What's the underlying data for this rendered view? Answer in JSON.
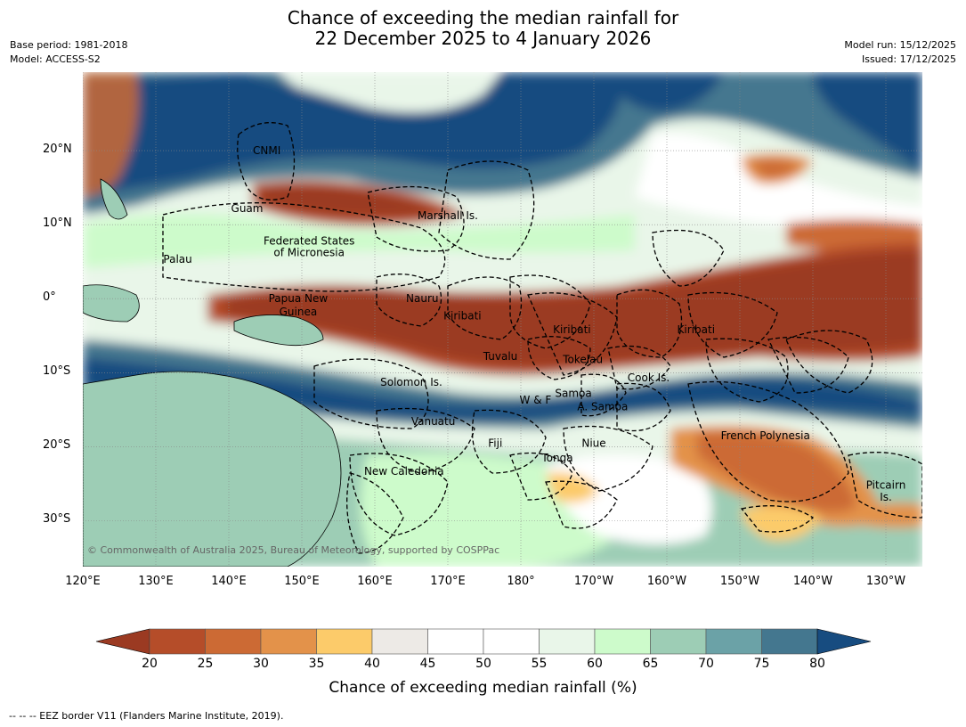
{
  "title": {
    "line1": "Chance of exceeding the median rainfall for",
    "line2": "22 December 2025 to 4 January 2026"
  },
  "meta": {
    "base_period": "Base period: 1981-2018",
    "model": "Model: ACCESS-S2",
    "model_run": "Model run: 15/12/2025",
    "issued": "Issued: 17/12/2025"
  },
  "axes": {
    "lat_labels": [
      "20°N",
      "10°N",
      "0°",
      "10°S",
      "20°S",
      "30°S"
    ],
    "lon_labels": [
      "120°E",
      "130°E",
      "140°E",
      "150°E",
      "160°E",
      "170°E",
      "180°",
      "170°W",
      "160°W",
      "150°W",
      "140°W",
      "130°W"
    ]
  },
  "places": [
    {
      "name": "CNMI",
      "lat": 20.0,
      "lon": 145.2
    },
    {
      "name": "Guam",
      "lat": 12.2,
      "lon": 142.5
    },
    {
      "name": "Marshall Is.",
      "lat": 11.2,
      "lon": 170.0
    },
    {
      "name": "Federated States",
      "lat": 7.8,
      "lon": 151.0
    },
    {
      "name": "of Micronesia",
      "lat": 6.2,
      "lon": 151.0
    },
    {
      "name": "Palau",
      "lat": 5.3,
      "lon": 133.0
    },
    {
      "name": "Papua New",
      "lat": 0.0,
      "lon": 149.5
    },
    {
      "name": "Guinea",
      "lat": -1.8,
      "lon": 149.5
    },
    {
      "name": "Nauru",
      "lat": 0.0,
      "lon": 166.5
    },
    {
      "name": "Kiribati",
      "lat": -2.3,
      "lon": 172.0
    },
    {
      "name": "Kiribati",
      "lat": -4.2,
      "lon": -173.0
    },
    {
      "name": "Kiribati",
      "lat": -4.2,
      "lon": -156.0
    },
    {
      "name": "Tuvalu",
      "lat": -7.8,
      "lon": 177.2
    },
    {
      "name": "Tokelau",
      "lat": -8.2,
      "lon": -171.5
    },
    {
      "name": "Solomon Is.",
      "lat": -11.3,
      "lon": 165.0
    },
    {
      "name": "Cook Is.",
      "lat": -10.7,
      "lon": -162.5
    },
    {
      "name": "Samoa",
      "lat": -12.8,
      "lon": -172.8
    },
    {
      "name": "W & F",
      "lat": -13.7,
      "lon": -178.0
    },
    {
      "name": "A. Samoa",
      "lat": -14.6,
      "lon": -168.8
    },
    {
      "name": "Vanuatu",
      "lat": -16.6,
      "lon": 168.0
    },
    {
      "name": "French Polynesia",
      "lat": -18.5,
      "lon": -146.5
    },
    {
      "name": "Fiji",
      "lat": -19.5,
      "lon": 176.5
    },
    {
      "name": "Niue",
      "lat": -19.5,
      "lon": -170.0
    },
    {
      "name": "Tonga",
      "lat": -21.5,
      "lon": -175.0
    },
    {
      "name": "New Caledonia",
      "lat": -23.3,
      "lon": 164.0
    },
    {
      "name": "Pitcairn",
      "lat": -25.2,
      "lon": -130.0
    },
    {
      "name": "Is.",
      "lat": -26.8,
      "lon": -130.0
    }
  ],
  "copyright": "© Commonwealth of Australia 2025, Bureau of Meteorology, supported by COSPPac",
  "colorbar": {
    "labels": [
      "20",
      "25",
      "30",
      "35",
      "40",
      "45",
      "50",
      "55",
      "60",
      "65",
      "70",
      "75",
      "80"
    ],
    "colors": [
      "#9b3a22",
      "#b54d29",
      "#cc6a34",
      "#e3924a",
      "#fccb6a",
      "#edeae6",
      "#ffffff",
      "#ffffff",
      "#e9f6e9",
      "#cdfbcb",
      "#9dcdb5",
      "#6ba2a7",
      "#44778f",
      "#174c80"
    ],
    "title": "Chance of exceeding median rainfall (%)"
  },
  "footer": "--  --  -- EEZ border V11 (Flanders Marine Institute, 2019)."
}
